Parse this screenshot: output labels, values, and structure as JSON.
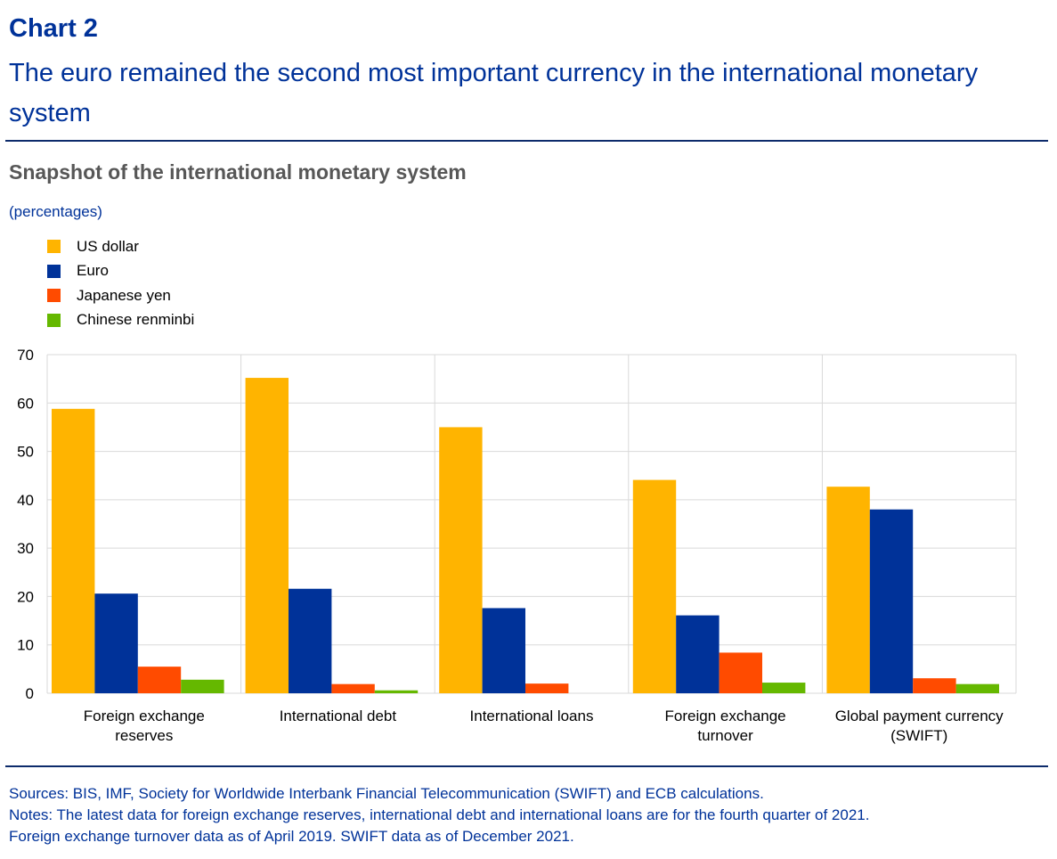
{
  "header": {
    "chart_label": "Chart 2",
    "headline_line1": "The euro remained the second most important currency in the international monetary",
    "headline_line2": "system"
  },
  "chart_data": {
    "type": "bar",
    "title": "Snapshot of the international monetary system",
    "unit": "(percentages)",
    "categories": [
      [
        "Foreign exchange",
        "reserves"
      ],
      [
        "International debt"
      ],
      [
        "International loans"
      ],
      [
        "Foreign exchange",
        "turnover"
      ],
      [
        "Global payment currency",
        "(SWIFT)"
      ]
    ],
    "series": [
      {
        "name": "US dollar",
        "color": "#ffb400",
        "values": [
          58.8,
          65.2,
          55.0,
          44.1,
          42.7
        ]
      },
      {
        "name": "Euro",
        "color": "#003299",
        "values": [
          20.6,
          21.6,
          17.6,
          16.1,
          38.0
        ]
      },
      {
        "name": "Japanese yen",
        "color": "#ff4b00",
        "values": [
          5.5,
          1.9,
          2.0,
          8.4,
          3.1
        ]
      },
      {
        "name": "Chinese renminbi",
        "color": "#65b800",
        "values": [
          2.8,
          0.6,
          null,
          2.2,
          1.9
        ]
      }
    ],
    "ylim": [
      0,
      70
    ],
    "yticks": [
      0,
      10,
      20,
      30,
      40,
      50,
      60,
      70
    ],
    "grid": true,
    "legend_position": "top-left"
  },
  "notes": {
    "sources": "Sources: BIS, IMF, Society for Worldwide Interbank Financial Telecommunication (SWIFT) and ECB calculations.",
    "notes_line1": "Notes: The latest data for foreign exchange reserves, international debt and international loans are for the fourth quarter of 2021.",
    "notes_line2": "Foreign exchange turnover data as of April 2019. SWIFT data as of December 2021."
  }
}
